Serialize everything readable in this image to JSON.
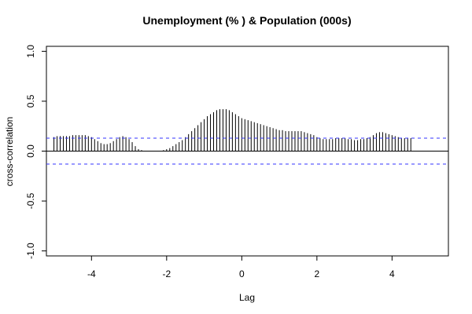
{
  "chart_data": {
    "type": "bar",
    "title": "Unemployment (% ) & Population (000s)",
    "xlabel": "Lag",
    "ylabel": "cross-correlation",
    "xlim": [
      -5.2,
      5.5
    ],
    "ylim": [
      -1.05,
      1.05
    ],
    "x_ticks": [
      -4,
      -2,
      0,
      2,
      4
    ],
    "x_tick_labels": [
      "-4",
      "-2",
      "0",
      "2",
      "4"
    ],
    "y_ticks": [
      -1.0,
      -0.5,
      0.0,
      0.5,
      1.0
    ],
    "y_tick_labels": [
      "-1.0",
      "-0.5",
      "0.0",
      "0.5",
      "1.0"
    ],
    "confidence_band": 0.13,
    "confidence_color": "#3333ff",
    "bar_color": "#000000",
    "grid": false,
    "lag_start": -5.0,
    "lag_step": 0.08333,
    "values": [
      0.14,
      0.15,
      0.15,
      0.15,
      0.15,
      0.15,
      0.16,
      0.16,
      0.16,
      0.16,
      0.16,
      0.15,
      0.14,
      0.12,
      0.1,
      0.08,
      0.07,
      0.07,
      0.08,
      0.1,
      0.12,
      0.14,
      0.15,
      0.14,
      0.12,
      0.09,
      0.05,
      0.02,
      0.01,
      0.0,
      0.0,
      0.0,
      0.0,
      0.0,
      0.0,
      0.01,
      0.02,
      0.03,
      0.05,
      0.07,
      0.09,
      0.11,
      0.14,
      0.17,
      0.2,
      0.23,
      0.26,
      0.29,
      0.32,
      0.35,
      0.37,
      0.39,
      0.41,
      0.42,
      0.42,
      0.42,
      0.41,
      0.39,
      0.37,
      0.35,
      0.33,
      0.32,
      0.31,
      0.3,
      0.29,
      0.28,
      0.27,
      0.26,
      0.25,
      0.24,
      0.23,
      0.22,
      0.21,
      0.21,
      0.2,
      0.2,
      0.2,
      0.2,
      0.2,
      0.2,
      0.19,
      0.18,
      0.17,
      0.16,
      0.14,
      0.13,
      0.12,
      0.12,
      0.12,
      0.12,
      0.13,
      0.13,
      0.13,
      0.13,
      0.12,
      0.12,
      0.11,
      0.11,
      0.12,
      0.12,
      0.13,
      0.14,
      0.16,
      0.18,
      0.19,
      0.19,
      0.18,
      0.17,
      0.16,
      0.15,
      0.14,
      0.13,
      0.13,
      0.13,
      0.13
    ]
  }
}
